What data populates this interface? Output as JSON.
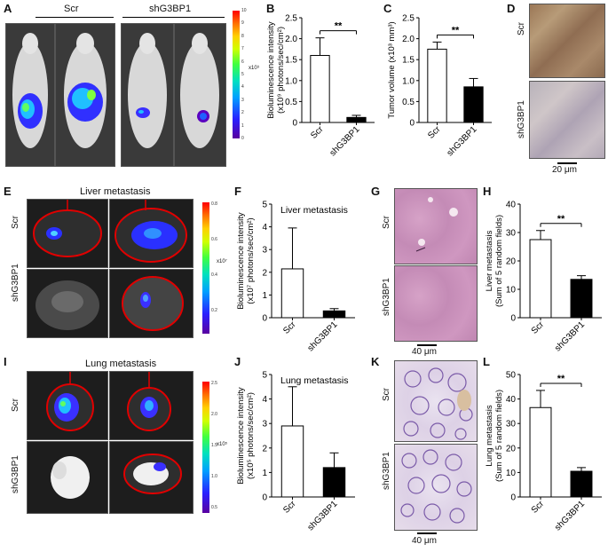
{
  "panels": {
    "A": {
      "letter": "A",
      "groups": [
        "Scr",
        "shG3BP1"
      ],
      "colorbar_ticks": [
        "10",
        "9",
        "8",
        "7",
        "6",
        "5",
        "4",
        "3",
        "2",
        "1",
        "0"
      ],
      "unit": "x10⁹"
    },
    "B": {
      "letter": "B"
    },
    "C": {
      "letter": "C"
    },
    "D": {
      "letter": "D",
      "rows": [
        "Scr",
        "shG3BP1"
      ],
      "scalebar": "20 μm"
    },
    "E": {
      "letter": "E",
      "title": "Liver metastasis",
      "rows": [
        "Scr",
        "shG3BP1"
      ],
      "colorbar_ticks": [
        "0.8",
        "0.6",
        "0.4",
        "0.2"
      ],
      "unit": "x10⁷"
    },
    "F": {
      "letter": "F"
    },
    "G": {
      "letter": "G",
      "rows": [
        "Scr",
        "shG3BP1"
      ],
      "scalebar": "40 μm"
    },
    "H": {
      "letter": "H"
    },
    "I": {
      "letter": "I",
      "title": "Lung metastasis",
      "rows": [
        "Scr",
        "shG3BP1"
      ],
      "colorbar_ticks": [
        "2.5",
        "2.0",
        "1.5",
        "1.0",
        "0.5"
      ],
      "unit": "x10⁵"
    },
    "J": {
      "letter": "J"
    },
    "K": {
      "letter": "K",
      "rows": [
        "Scr",
        "shG3BP1"
      ],
      "scalebar": "40 μm"
    },
    "L": {
      "letter": "L"
    }
  },
  "chart_data": [
    {
      "id": "B",
      "type": "bar",
      "categories": [
        "Scr",
        "shG3BP1"
      ],
      "values": [
        1.6,
        0.12
      ],
      "errors": [
        0.42,
        0.05
      ],
      "ylabel": "Bioluminescence intensity",
      "ylabel2": "(x10⁹ photons/sec/cm²)",
      "ylim": [
        0,
        2.5
      ],
      "yticks": [
        "0",
        "0.5",
        "1.0",
        "1.5",
        "2.0",
        "2.5"
      ],
      "sig": "**",
      "title": ""
    },
    {
      "id": "C",
      "type": "bar",
      "categories": [
        "Scr",
        "shG3BP1"
      ],
      "values": [
        1.75,
        0.85
      ],
      "errors": [
        0.17,
        0.2
      ],
      "ylabel": "Tumor volume (x10³ mm³)",
      "ylabel2": "",
      "ylim": [
        0,
        2.5
      ],
      "yticks": [
        "0",
        "0.5",
        "1.0",
        "1.5",
        "2.0",
        "2.5"
      ],
      "sig": "**",
      "title": ""
    },
    {
      "id": "F",
      "type": "bar",
      "categories": [
        "Scr",
        "shG3BP1"
      ],
      "values": [
        2.15,
        0.3
      ],
      "errors": [
        1.8,
        0.1
      ],
      "ylabel": "Bioluminescence intensity",
      "ylabel2": "(x10⁷ photons/sec/cm²)",
      "ylim": [
        0,
        5
      ],
      "yticks": [
        "0",
        "1",
        "2",
        "3",
        "4",
        "5"
      ],
      "sig": "",
      "title": "Liver metastasis"
    },
    {
      "id": "H",
      "type": "bar",
      "categories": [
        "Scr",
        "shG3BP1"
      ],
      "values": [
        27.5,
        13.5
      ],
      "errors": [
        3.2,
        1.3
      ],
      "ylabel": "Liver metastasis",
      "ylabel2": "(Sum of 5 random fields)",
      "ylim": [
        0,
        40
      ],
      "yticks": [
        "0",
        "10",
        "20",
        "30",
        "40"
      ],
      "sig": "**",
      "title": ""
    },
    {
      "id": "J",
      "type": "bar",
      "categories": [
        "Scr",
        "shG3BP1"
      ],
      "values": [
        2.9,
        1.2
      ],
      "errors": [
        1.6,
        0.6
      ],
      "ylabel": "Bioluminescence intensity",
      "ylabel2": "(x10⁵ photons/sec/cm²)",
      "ylim": [
        0,
        5
      ],
      "yticks": [
        "0",
        "1",
        "2",
        "3",
        "4",
        "5"
      ],
      "sig": "",
      "title": "Lung metastasis"
    },
    {
      "id": "L",
      "type": "bar",
      "categories": [
        "Scr",
        "shG3BP1"
      ],
      "values": [
        36.5,
        10.5
      ],
      "errors": [
        7.0,
        1.5
      ],
      "ylabel": "Lung metastasis",
      "ylabel2": "(Sum of 5 random fields)",
      "ylim": [
        0,
        50
      ],
      "yticks": [
        "0",
        "10",
        "20",
        "30",
        "40",
        "50"
      ],
      "sig": "**",
      "title": ""
    }
  ]
}
